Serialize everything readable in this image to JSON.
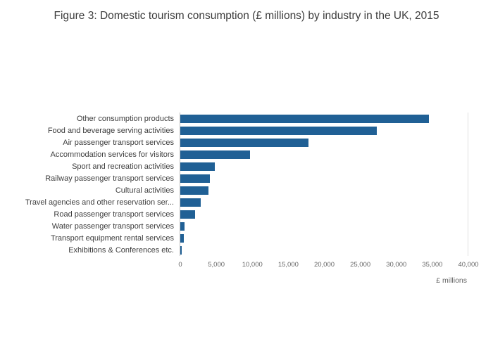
{
  "title": "Figure 3: Domestic tourism consumption (£ millions) by industry in the UK, 2015",
  "chart_data": {
    "type": "bar",
    "orientation": "horizontal",
    "title": "Figure 3: Domestic tourism consumption (£ millions) by industry in the UK, 2015",
    "categories": [
      "Other consumption products",
      "Food and beverage serving activities",
      "Air passenger transport services",
      "Accommodation services for visitors",
      "Sport and recreation activities",
      "Railway passenger transport services",
      "Cultural activities",
      "Travel agencies and other reservation ser...",
      "Road passenger transport services",
      "Water passenger transport services",
      "Transport equipment rental services",
      "Exhibitions & Conferences etc."
    ],
    "values": [
      34500,
      27300,
      17800,
      9700,
      4800,
      4100,
      3900,
      2800,
      2100,
      600,
      500,
      200
    ],
    "xlabel": "£ millions",
    "ylabel": "",
    "xlim": [
      0,
      40000
    ],
    "xticks": [
      0,
      5000,
      10000,
      15000,
      20000,
      25000,
      30000,
      35000,
      40000
    ],
    "xtick_labels": [
      "0",
      "5,000",
      "10,000",
      "15,000",
      "20,000",
      "25,000",
      "30,000",
      "35,000",
      "40,000"
    ],
    "bar_color": "#206095",
    "grid": false,
    "legend": false
  }
}
